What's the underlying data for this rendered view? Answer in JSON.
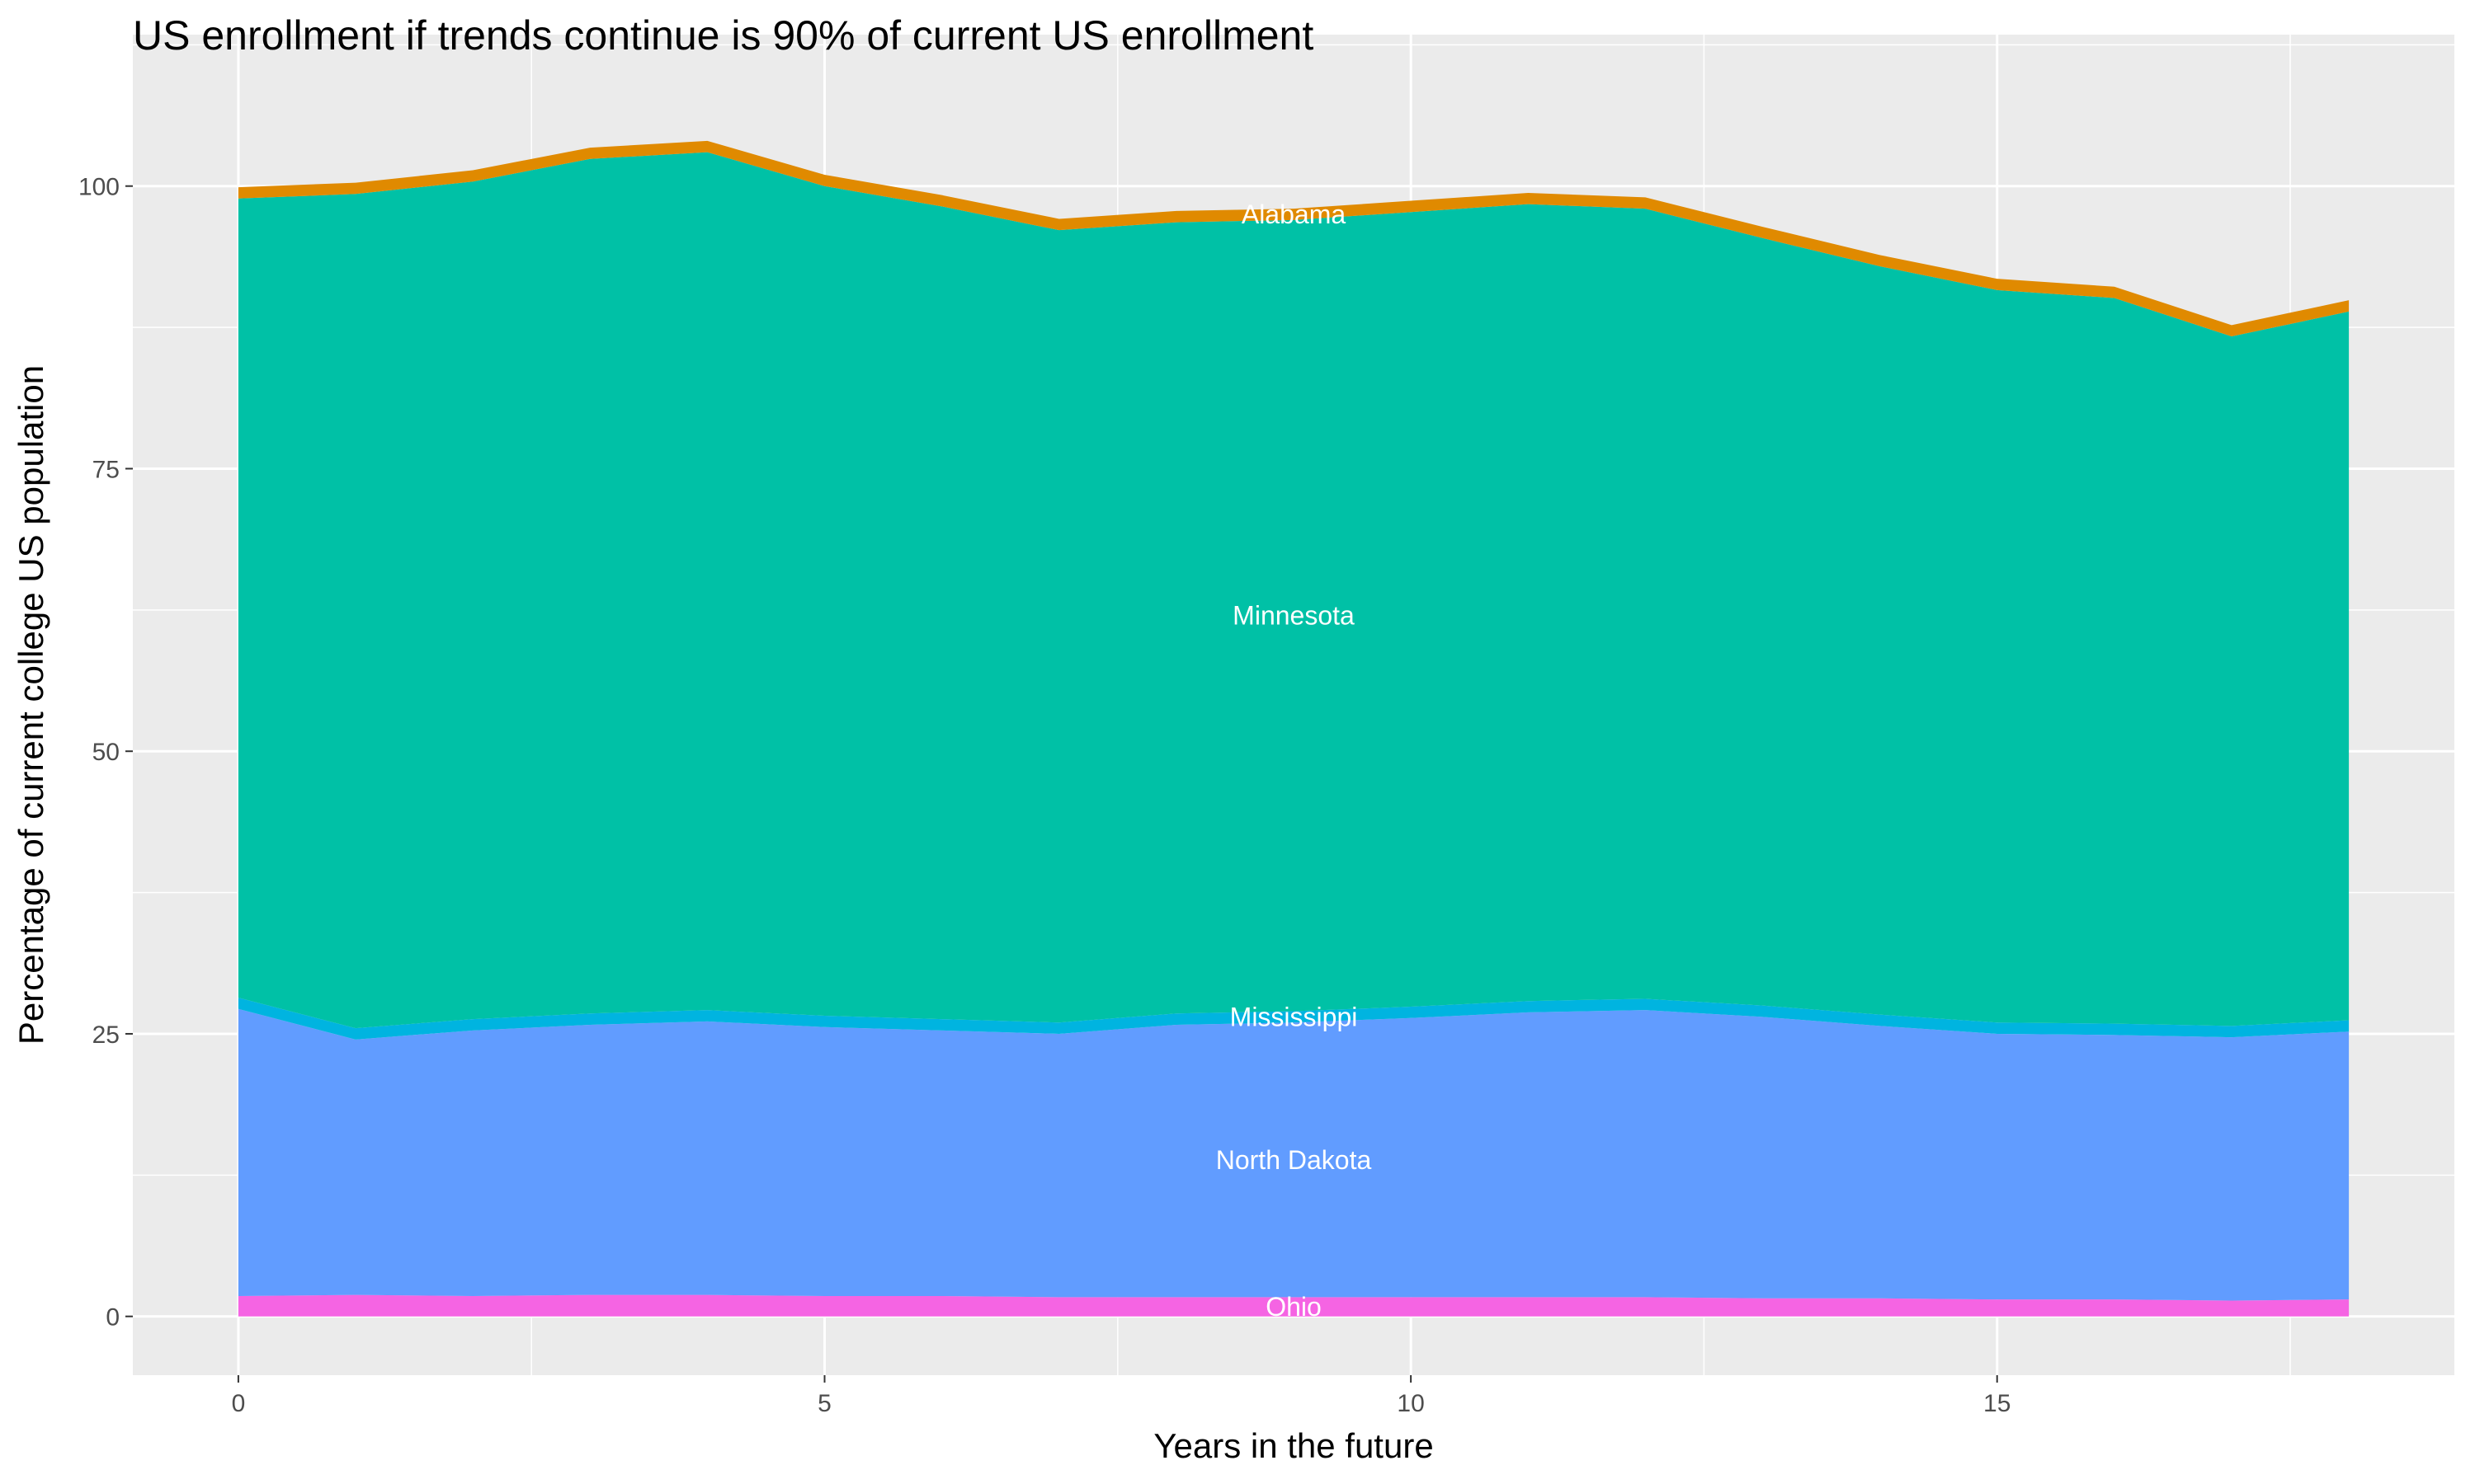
{
  "chart_data": {
    "type": "area",
    "stacked": true,
    "title": "US enrollment if trends continue is 90% of current US enrollment",
    "xlabel": "Years in the future",
    "ylabel": "Percentage of current college US population",
    "x": [
      0,
      1,
      2,
      3,
      4,
      5,
      6,
      7,
      8,
      9,
      10,
      11,
      12,
      13,
      14,
      15,
      16,
      17,
      18
    ],
    "xlim": [
      -0.9,
      18.9
    ],
    "ylim": [
      -5.2,
      113.4
    ],
    "x_ticks": [
      0,
      5,
      10,
      15
    ],
    "x_tick_labels": [
      "0",
      "5",
      "10",
      "15"
    ],
    "y_ticks": [
      0,
      25,
      50,
      75,
      100
    ],
    "y_tick_labels": [
      "0",
      "25",
      "50",
      "75",
      "100"
    ],
    "grid": true,
    "legend": "none",
    "label_x": 9,
    "series": [
      {
        "name": "Ohio",
        "color": "#F564E3",
        "values": [
          1.8,
          1.9,
          1.8,
          1.9,
          1.9,
          1.8,
          1.8,
          1.7,
          1.7,
          1.7,
          1.7,
          1.7,
          1.7,
          1.6,
          1.6,
          1.5,
          1.5,
          1.4,
          1.5
        ]
      },
      {
        "name": "North Dakota",
        "color": "#619CFF",
        "values": [
          25.4,
          22.6,
          23.5,
          23.9,
          24.2,
          23.8,
          23.5,
          23.3,
          24.1,
          24.3,
          24.7,
          25.2,
          25.4,
          24.9,
          24.1,
          23.5,
          23.4,
          23.3,
          23.7
        ]
      },
      {
        "name": "Mississippi",
        "color": "#00B4E0",
        "values": [
          1.0,
          1.0,
          1.0,
          1.0,
          1.0,
          1.0,
          1.0,
          1.0,
          1.0,
          1.0,
          1.0,
          1.0,
          1.0,
          1.0,
          1.0,
          1.0,
          1.0,
          1.0,
          1.0
        ]
      },
      {
        "name": "Minnesota",
        "color": "#00C1A6",
        "values": [
          70.7,
          73.8,
          74.1,
          75.6,
          75.9,
          73.4,
          71.9,
          70.1,
          70.0,
          70.0,
          70.3,
          70.5,
          69.9,
          67.9,
          66.2,
          64.8,
          64.2,
          61.0,
          62.7
        ]
      },
      {
        "name": "Alabama",
        "color": "#E08A00",
        "values": [
          1.0,
          1.0,
          1.0,
          1.0,
          1.0,
          1.0,
          1.0,
          1.0,
          1.0,
          1.0,
          1.0,
          1.0,
          1.0,
          1.0,
          1.0,
          1.0,
          1.0,
          1.0,
          1.0
        ]
      }
    ],
    "colors": {
      "panel": "#EBEBEB",
      "grid": "#FFFFFF"
    }
  }
}
